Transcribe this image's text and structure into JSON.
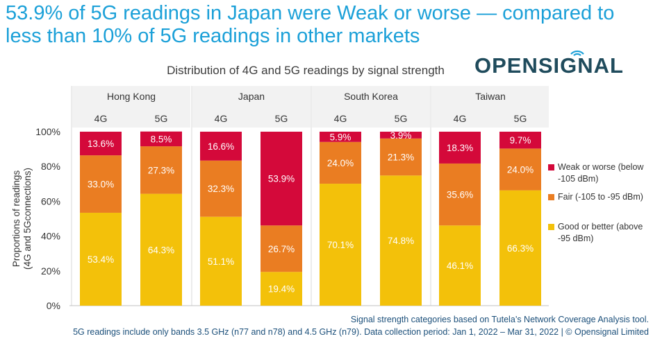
{
  "headline": "53.9% of 5G readings in Japan were Weak or worse — compared to less than 10% of 5G readings in other markets",
  "brand": {
    "name": "OPENSIGNAL",
    "icon": "wifi-signal-icon",
    "color": "#1f4b5c"
  },
  "chart_data": {
    "type": "bar",
    "stacked": true,
    "title": "Distribution of 4G and 5G readings by signal strength",
    "ylabel": "Proportions of readings (4G and 5Gconnections)",
    "ylabel_lines": [
      "Proportions of readings",
      "(4G and 5Gconnections)"
    ],
    "ylim": [
      0,
      100
    ],
    "yticks": [
      "0%",
      "20%",
      "40%",
      "60%",
      "80%",
      "100%"
    ],
    "groups": [
      "Hong Kong",
      "Japan",
      "South Korea",
      "Taiwan"
    ],
    "categories": [
      "4G",
      "5G",
      "4G",
      "5G",
      "4G",
      "5G",
      "4G",
      "5G"
    ],
    "series": [
      {
        "name": "Good or better (above -95 dBm)",
        "color": "#f3c10a",
        "values": [
          53.4,
          64.3,
          51.1,
          19.4,
          70.1,
          74.8,
          46.1,
          66.3
        ],
        "labels": [
          "53.4%",
          "64.3%",
          "51.1%",
          "19.4%",
          "70.1%",
          "74.8%",
          "46.1%",
          "66.3%"
        ]
      },
      {
        "name": "Fair (-105 to -95 dBm)",
        "color": "#ea7d22",
        "values": [
          33.0,
          27.3,
          32.3,
          26.7,
          24.0,
          21.3,
          35.6,
          24.0
        ],
        "labels": [
          "33.0%",
          "27.3%",
          "32.3%",
          "26.7%",
          "24.0%",
          "21.3%",
          "35.6%",
          "24.0%"
        ]
      },
      {
        "name": "Weak or worse (below -105 dBm)",
        "color": "#d4093a",
        "values": [
          13.6,
          8.5,
          16.6,
          53.9,
          5.9,
          3.9,
          18.3,
          9.7
        ],
        "labels": [
          "13.6%",
          "8.5%",
          "16.6%",
          "53.9%",
          "5.9%",
          "3.9%",
          "18.3%",
          "9.7%"
        ]
      }
    ],
    "legend": [
      {
        "label": "Weak or worse (below -105 dBm)",
        "color": "#d4093a"
      },
      {
        "label": "Fair (-105 to -95 dBm)",
        "color": "#ea7d22"
      },
      {
        "label": "Good or better (above -95 dBm)",
        "color": "#f3c10a"
      }
    ],
    "legend_position": "right"
  },
  "footnotes": [
    "Signal strength categories based on Tutela’s Network Coverage Analysis tool.",
    "5G readings include only bands 3.5 GHz  (n77 and n78) and 4.5 GHz (n79). Data collection period: Jan 1, 2022 – Mar 31, 2022 | © Opensignal Limited"
  ]
}
